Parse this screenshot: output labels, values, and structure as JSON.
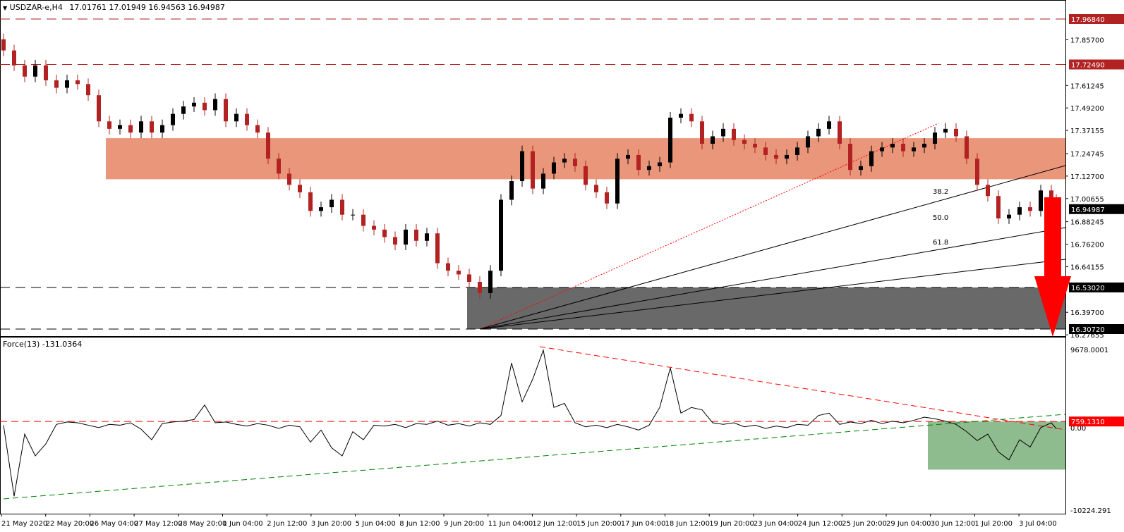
{
  "header": {
    "symbol": "USDZAR-e,H4",
    "ohlc": "17.01761 17.01949 16.94563 16.94987"
  },
  "indicator": {
    "label": "Force(13) -131.0364"
  },
  "colors": {
    "bull": "#000000",
    "bear": "#b22222",
    "resistance_zone": "#e9967a",
    "support_zone": "#696969",
    "arrow": "#ff0000",
    "force_box": "#8fbc8f"
  },
  "chart_data": [
    {
      "type": "candlestick",
      "title": "USDZAR-e,H4",
      "ylim": [
        16.27655,
        17.9684
      ],
      "x_tick_labels": [
        "21 May 2020",
        "22 May 20:00",
        "26 May 04:00",
        "27 May 12:00",
        "28 May 20:00",
        "1 Jun 04:00",
        "2 Jun 12:00",
        "3 Jun 20:00",
        "5 Jun 04:00",
        "8 Jun 12:00",
        "9 Jun 20:00",
        "11 Jun 04:00",
        "12 Jun 12:00",
        "15 Jun 20:00",
        "17 Jun 04:00",
        "18 Jun 12:00",
        "19 Jun 20:00",
        "23 Jun 04:00",
        "24 Jun 12:00",
        "25 Jun 20:00",
        "29 Jun 04:00",
        "30 Jun 12:00",
        "1 Jul 20:00",
        "3 Jul 04:00"
      ],
      "y_tick_labels": [
        "17.85700",
        "17.61245",
        "17.49200",
        "17.37155",
        "17.24745",
        "17.12700",
        "17.00655",
        "16.88245",
        "16.76200",
        "16.64155",
        "16.39700",
        "16.27655"
      ],
      "closes": [
        17.8,
        17.72,
        17.66,
        17.72,
        17.64,
        17.6,
        17.64,
        17.62,
        17.56,
        17.42,
        17.38,
        17.4,
        17.36,
        17.42,
        17.36,
        17.4,
        17.46,
        17.5,
        17.52,
        17.48,
        17.54,
        17.42,
        17.46,
        17.4,
        17.36,
        17.22,
        17.14,
        17.08,
        17.04,
        16.94,
        16.96,
        17.0,
        16.92,
        16.92,
        16.86,
        16.84,
        16.8,
        16.76,
        16.84,
        16.78,
        16.82,
        16.66,
        16.62,
        16.6,
        16.56,
        16.5,
        16.62,
        17.0,
        17.1,
        17.26,
        17.06,
        17.14,
        17.2,
        17.22,
        17.18,
        17.08,
        17.04,
        16.98,
        17.22,
        17.24,
        17.16,
        17.18,
        17.2,
        17.44,
        17.46,
        17.42,
        17.3,
        17.34,
        17.38,
        17.32,
        17.3,
        17.28,
        17.24,
        17.22,
        17.24,
        17.28,
        17.34,
        17.38,
        17.42,
        17.3,
        17.16,
        17.18,
        17.26,
        17.28,
        17.3,
        17.26,
        17.28,
        17.3,
        17.36,
        17.38,
        17.34,
        17.22,
        17.08,
        17.02,
        16.9,
        16.92,
        16.96,
        16.94,
        17.05,
        17.0,
        16.94987
      ],
      "levels": [
        {
          "value": 17.9684,
          "label": "17.96840",
          "style": "red-dashed"
        },
        {
          "value": 17.7249,
          "label": "17.72490",
          "style": "red-dashed"
        },
        {
          "value": 16.5302,
          "label": "16.53020",
          "style": "black-dashed"
        },
        {
          "value": 16.3072,
          "label": "16.30720",
          "style": "black-dashed"
        }
      ],
      "current_price": {
        "value": 16.94987,
        "label": "16.94987"
      },
      "resistance_zone": [
        17.11,
        17.33
      ],
      "support_zone": [
        16.3072,
        16.5302
      ],
      "fibonacci_fan_labels": [
        "38.2",
        "50.0",
        "61.8"
      ]
    },
    {
      "type": "line",
      "title": "Force(13) -131.0364",
      "ylim": [
        -10224.291,
        9678.0001
      ],
      "y_tick_labels": [
        "9678.0001",
        "0.00",
        "-10224.291"
      ],
      "level": {
        "value": 759.131,
        "label": "759.1310"
      },
      "values": [
        300,
        -8500,
        -800,
        -3500,
        -2000,
        400,
        700,
        600,
        300,
        0,
        400,
        300,
        600,
        -200,
        -1500,
        500,
        700,
        800,
        1000,
        2800,
        600,
        700,
        400,
        200,
        500,
        300,
        -100,
        300,
        100,
        -1800,
        -300,
        -2500,
        -3500,
        -500,
        -1500,
        300,
        200,
        400,
        0,
        500,
        400,
        800,
        300,
        500,
        200,
        600,
        400,
        1500,
        8000,
        3200,
        6000,
        9600,
        2500,
        3000,
        600,
        100,
        300,
        0,
        400,
        100,
        -300,
        300,
        2500,
        7400,
        1800,
        2500,
        2200,
        600,
        400,
        600,
        100,
        300,
        -100,
        200,
        0,
        400,
        300,
        1500,
        1800,
        400,
        700,
        500,
        900,
        500,
        800,
        600,
        900,
        1300,
        1100,
        800,
        400,
        -500,
        -1600,
        -800,
        -3000,
        -4000,
        -1500,
        -2400,
        0,
        600,
        -131
      ]
    }
  ]
}
